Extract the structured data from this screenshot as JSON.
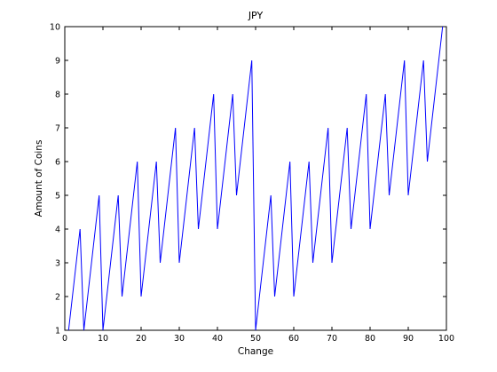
{
  "chart_data": {
    "type": "line",
    "title": "JPY",
    "xlabel": "Change",
    "ylabel": "Amount of Coins",
    "xlim": [
      0,
      100
    ],
    "ylim": [
      1,
      10
    ],
    "xticks": [
      0,
      10,
      20,
      30,
      40,
      50,
      60,
      70,
      80,
      90,
      100
    ],
    "yticks": [
      1,
      2,
      3,
      4,
      5,
      6,
      7,
      8,
      9,
      10
    ],
    "grid": false,
    "line_color": "#0000ff",
    "series": [
      {
        "x": [
          1,
          2,
          3,
          4,
          5,
          6,
          7,
          8,
          9,
          10,
          11,
          12,
          13,
          14,
          15,
          16,
          17,
          18,
          19,
          20,
          21,
          22,
          23,
          24,
          25,
          26,
          27,
          28,
          29,
          30,
          31,
          32,
          33,
          34,
          35,
          36,
          37,
          38,
          39,
          40,
          41,
          42,
          43,
          44,
          45,
          46,
          47,
          48,
          49,
          50,
          51,
          52,
          53,
          54,
          55,
          56,
          57,
          58,
          59,
          60,
          61,
          62,
          63,
          64,
          65,
          66,
          67,
          68,
          69,
          70,
          71,
          72,
          73,
          74,
          75,
          76,
          77,
          78,
          79,
          80,
          81,
          82,
          83,
          84,
          85,
          86,
          87,
          88,
          89,
          90,
          91,
          92,
          93,
          94,
          95,
          96,
          97,
          98,
          99
        ],
        "values": [
          1,
          2,
          3,
          4,
          1,
          2,
          3,
          4,
          5,
          1,
          2,
          3,
          4,
          5,
          2,
          3,
          4,
          5,
          6,
          2,
          3,
          4,
          5,
          6,
          3,
          4,
          5,
          6,
          7,
          3,
          4,
          5,
          6,
          7,
          4,
          5,
          6,
          7,
          8,
          4,
          5,
          6,
          7,
          8,
          5,
          6,
          7,
          8,
          9,
          1,
          2,
          3,
          4,
          5,
          2,
          3,
          4,
          5,
          6,
          2,
          3,
          4,
          5,
          6,
          3,
          4,
          5,
          6,
          7,
          3,
          4,
          5,
          6,
          7,
          4,
          5,
          6,
          7,
          8,
          4,
          5,
          6,
          7,
          8,
          5,
          6,
          7,
          8,
          9,
          5,
          6,
          7,
          8,
          9,
          6,
          7,
          8,
          9,
          10
        ]
      }
    ]
  }
}
